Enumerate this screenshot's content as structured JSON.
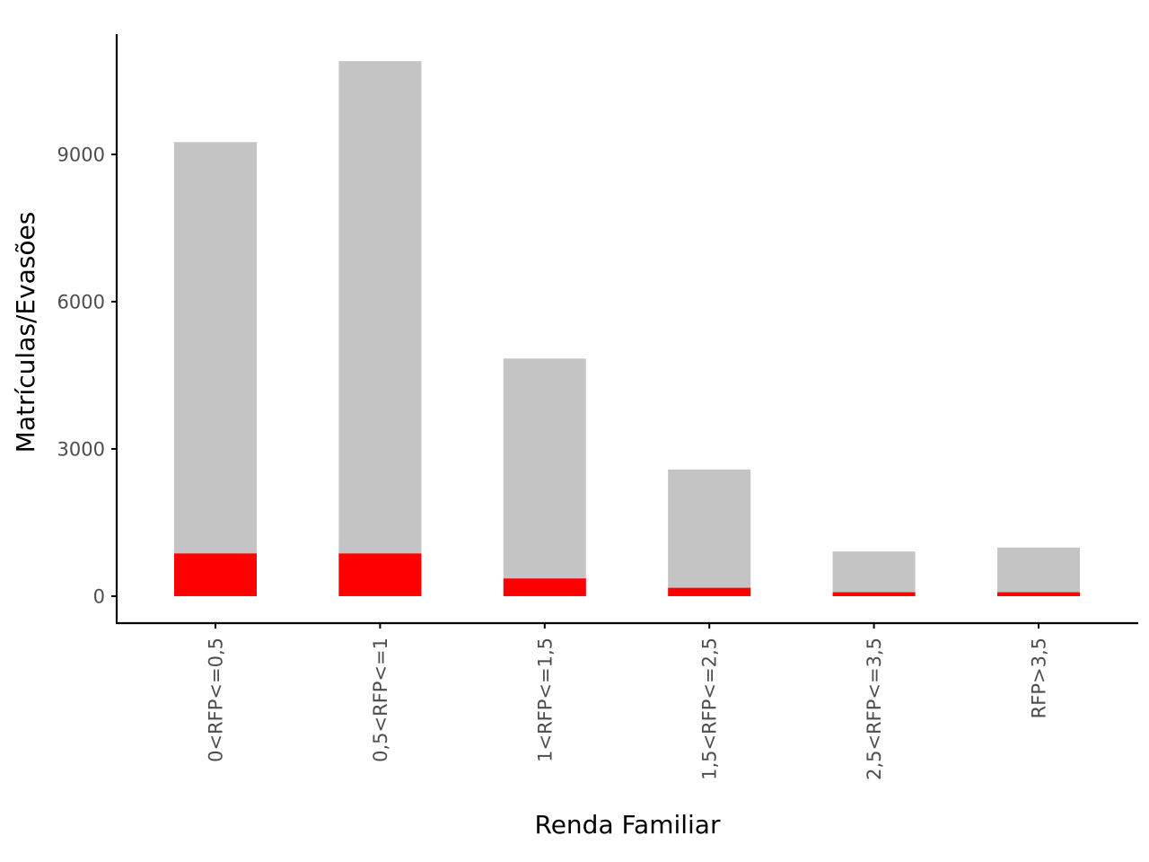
{
  "chart_data": {
    "type": "bar",
    "title": "",
    "xlabel": "Renda Familiar",
    "ylabel": "Matrículas/Evasões",
    "categories": [
      "0<RFP<=0,5",
      "0,5<RFP<=1",
      "1<RFP<=1,5",
      "1,5<RFP<=2,5",
      "2,5<RFP<=3,5",
      "RFP>3,5"
    ],
    "series": [
      {
        "values": [
          9250,
          10900,
          4840,
          2580,
          910,
          990
        ],
        "color": "#c4c4c4"
      },
      {
        "values": [
          870,
          870,
          360,
          170,
          80,
          80
        ],
        "color": "#ff0000"
      }
    ],
    "yticks": [
      0,
      3000,
      6000,
      9000
    ],
    "ytick_labels": [
      "0",
      "3000",
      "6000",
      "9000"
    ],
    "ylim": [
      -550,
      11450
    ],
    "bars_overlap": true,
    "grid": false,
    "legend": "none"
  }
}
